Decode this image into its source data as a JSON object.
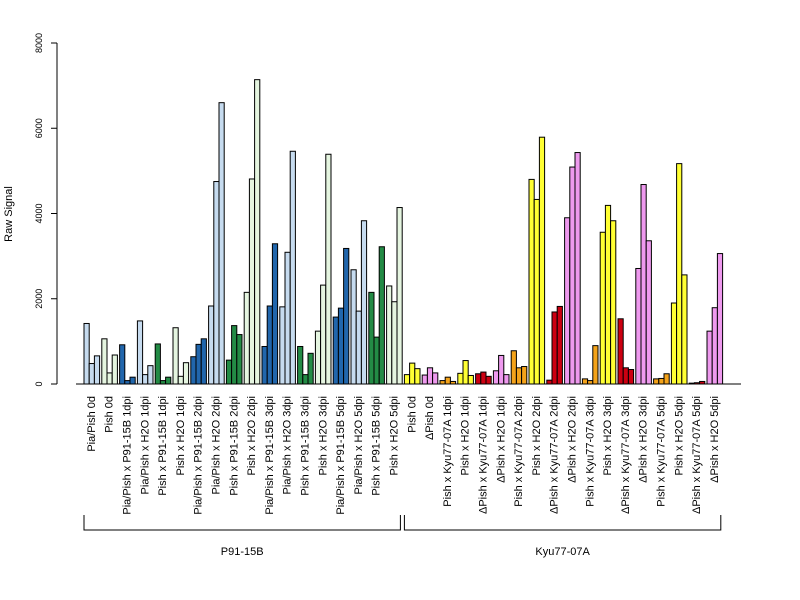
{
  "chart_data": {
    "type": "bar",
    "ylabel": "Raw Signal",
    "ylim": [
      0,
      8000
    ],
    "yticks": [
      0,
      2000,
      4000,
      6000,
      8000
    ],
    "grid": false,
    "categories": [
      "Pia/Pish 0d",
      "Pish 0d",
      "Pia/Pish x P91-15B 1dpi",
      "Pia/Pish x H2O 1dpi",
      "Pish x P91-15B 1dpi",
      "Pish x H2O 1dpi",
      "Pia/Pish x P91-15B 2dpi",
      "Pia/Pish x H2O 2dpi",
      "Pish x P91-15B 2dpi",
      "Pish x H2O 2dpi",
      "Pia/Pish x P91-15B 3dpi",
      "Pia/Pish x H2O 3dpi",
      "Pish x P91-15B 3dpi",
      "Pish x H2O 3dpi",
      "Pia/Pish x P91-15B 5dpi",
      "Pia/Pish x H2O 5dpi",
      "Pish x P91-15B 5dpi",
      "Pish x H2O 5dpi",
      "Pish 0d",
      "ΔPish 0d",
      "Pish x Kyu77-07A 1dpi",
      "Pish x H2O 1dpi",
      "ΔPish x Kyu77-07A 1dpi",
      "ΔPish x H2O 1dpi",
      "Pish x Kyu77-07A 2dpi",
      "Pish x H2O 2dpi",
      "ΔPish x Kyu77-07A 2dpi",
      "ΔPish x H2O 2dpi",
      "Pish x Kyu77-07A 3dpi",
      "Pish x H2O 3dpi",
      "ΔPish x Kyu77-07A 3dpi",
      "ΔPish x H2O 3dpi",
      "Pish x Kyu77-07A 5dpi",
      "Pish x H2O 5dpi",
      "ΔPish x Kyu77-07A 5dpi",
      "ΔPish x H2O 5dpi"
    ],
    "bar_colors": [
      "#c6dbef",
      "#e5f5e0",
      "#2166ac",
      "#c6dbef",
      "#238b45",
      "#e5f5e0",
      "#2166ac",
      "#c6dbef",
      "#238b45",
      "#e5f5e0",
      "#2166ac",
      "#c6dbef",
      "#238b45",
      "#e5f5e0",
      "#2166ac",
      "#c6dbef",
      "#238b45",
      "#e5f5e0",
      "#ffff33",
      "#ee99ee",
      "#f4a31a",
      "#ffff33",
      "#cc0011",
      "#ee99ee",
      "#f4a31a",
      "#ffff33",
      "#cc0011",
      "#ee99ee",
      "#f4a31a",
      "#ffff33",
      "#cc0011",
      "#ee99ee",
      "#f4a31a",
      "#ffff33",
      "#cc0011",
      "#ee99ee"
    ],
    "values": [
      [
        1420,
        480,
        660
      ],
      [
        1060,
        260,
        680
      ],
      [
        920,
        80,
        160
      ],
      [
        1480,
        220,
        430
      ],
      [
        940,
        80,
        160
      ],
      [
        1320,
        180,
        500
      ],
      [
        640,
        930,
        1060
      ],
      [
        1830,
        4750,
        6600
      ],
      [
        560,
        1370,
        1160
      ],
      [
        2150,
        4810,
        7140
      ],
      [
        880,
        1830,
        3290
      ],
      [
        1810,
        3090,
        5460
      ],
      [
        880,
        220,
        720
      ],
      [
        1240,
        2320,
        5390
      ],
      [
        1570,
        1780,
        3180
      ],
      [
        2680,
        1710,
        3830
      ],
      [
        2150,
        1100,
        3220
      ],
      [
        2300,
        1930,
        4140
      ],
      [
        220,
        490,
        360
      ],
      [
        210,
        380,
        260
      ],
      [
        80,
        160,
        60
      ],
      [
        250,
        550,
        200
      ],
      [
        240,
        280,
        180
      ],
      [
        310,
        670,
        220
      ],
      [
        780,
        380,
        410
      ],
      [
        4800,
        4330,
        5790
      ],
      [
        90,
        1690,
        1820
      ],
      [
        3900,
        5090,
        5430
      ],
      [
        120,
        80,
        900
      ],
      [
        3560,
        4190,
        3830
      ],
      [
        1530,
        380,
        340
      ],
      [
        2710,
        4680,
        3360
      ],
      [
        120,
        130,
        240
      ],
      [
        1900,
        5170,
        2560
      ],
      [
        20,
        30,
        60
      ],
      [
        1240,
        1790,
        3060
      ]
    ],
    "groups": [
      {
        "label": "P91-15B",
        "first": 0,
        "last": 17
      },
      {
        "label": "Kyu77-07A",
        "first": 18,
        "last": 35
      }
    ]
  }
}
